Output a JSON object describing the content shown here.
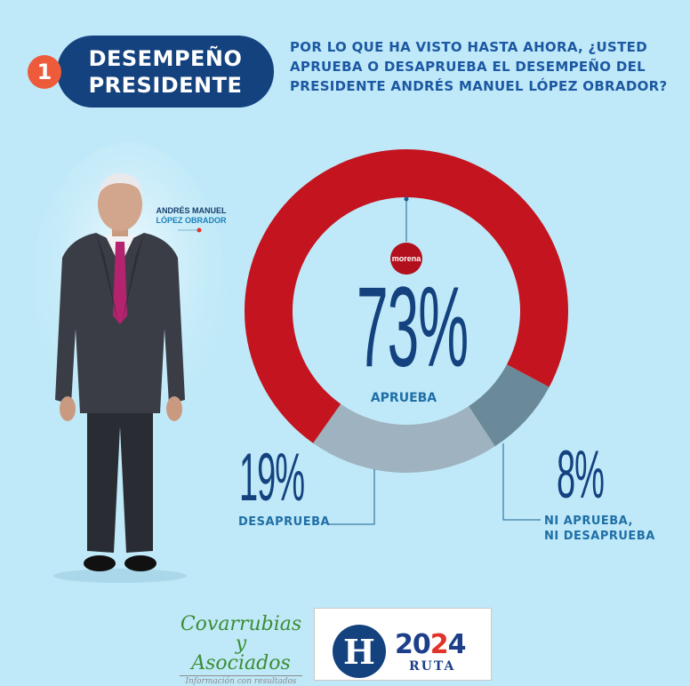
{
  "header": {
    "number": "1",
    "title_line1": "DESEMPEÑO",
    "title_line2": "PRESIDENTE",
    "question": "POR LO QUE HA VISTO HASTA AHORA, ¿USTED APRUEBA O DESAPRUEBA EL DESEMPEÑO DEL PRESIDENTE ANDRÉS MANUEL LÓPEZ OBRADOR?"
  },
  "person": {
    "name_line1": "ANDRÉS MANUEL",
    "name_line2": "LÓPEZ OBRADOR"
  },
  "party_logo": {
    "text": "morena"
  },
  "chart_data": {
    "type": "pie",
    "subtype": "donut",
    "categories": [
      "APRUEBA",
      "DESAPRUEBA",
      "NI APRUEBA, NI DESAPRUEBA"
    ],
    "values": [
      73,
      19,
      8
    ],
    "labels": [
      "73%",
      "19%",
      "8%"
    ],
    "label_lines": {
      "ni": [
        "NI APRUEBA,",
        "NI DESAPRUEBA"
      ]
    },
    "colors": [
      "#c3141f",
      "#9eb3bf",
      "#6a8a99"
    ]
  },
  "footer": {
    "covarrubias_line1": "Covarrubias y",
    "covarrubias_line2": "Asociados",
    "covarrubias_tagline": "Información con resultados",
    "h_logo": "H",
    "year_left": "20",
    "year_mid": "2",
    "year_right": "4",
    "ruta": "RUTA"
  }
}
